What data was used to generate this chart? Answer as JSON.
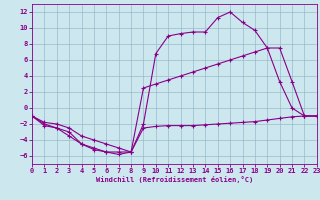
{
  "xlabel": "Windchill (Refroidissement éolien,°C)",
  "bg_color": "#cce8ee",
  "line_color": "#880088",
  "grid_color": "#99bbcc",
  "xlim": [
    0,
    23
  ],
  "ylim": [
    -7,
    13
  ],
  "yticks": [
    -6,
    -4,
    -2,
    0,
    2,
    4,
    6,
    8,
    10,
    12
  ],
  "xticks": [
    0,
    1,
    2,
    3,
    4,
    5,
    6,
    7,
    8,
    9,
    10,
    11,
    12,
    13,
    14,
    15,
    16,
    17,
    18,
    19,
    20,
    21,
    22,
    23
  ],
  "line1_x": [
    0,
    1,
    2,
    3,
    4,
    5,
    6,
    7,
    8,
    9,
    10,
    11,
    12,
    13,
    14,
    15,
    16,
    17,
    18,
    19,
    20,
    21,
    22,
    23
  ],
  "line1_y": [
    -1,
    -2.2,
    -2.5,
    -3.5,
    -4.5,
    -5.2,
    -5.5,
    -5.5,
    -5.5,
    -2.0,
    6.8,
    9.0,
    9.3,
    9.5,
    9.5,
    11.3,
    12.0,
    10.7,
    9.7,
    7.5,
    3.3,
    0.0,
    -1.0,
    -1.0
  ],
  "line2_x": [
    0,
    1,
    2,
    3,
    4,
    5,
    6,
    7,
    8,
    9,
    10,
    11,
    12,
    13,
    14,
    15,
    16,
    17,
    18,
    19,
    20,
    21,
    22,
    23
  ],
  "line2_y": [
    -1.0,
    -1.8,
    -2.0,
    -2.5,
    -3.5,
    -4.0,
    -4.5,
    -5.0,
    -5.5,
    2.5,
    3.0,
    3.5,
    4.0,
    4.5,
    5.0,
    5.5,
    6.0,
    6.5,
    7.0,
    7.5,
    7.5,
    3.3,
    -1.0,
    -1.0
  ],
  "line3_x": [
    0,
    1,
    2,
    3,
    4,
    5,
    6,
    7,
    8,
    9,
    10,
    11,
    12,
    13,
    14,
    15,
    16,
    17,
    18,
    19,
    20,
    21,
    22,
    23
  ],
  "line3_y": [
    -1.0,
    -2.0,
    -2.5,
    -3.0,
    -4.5,
    -5.0,
    -5.5,
    -5.8,
    -5.5,
    -2.5,
    -2.3,
    -2.2,
    -2.2,
    -2.2,
    -2.1,
    -2.0,
    -1.9,
    -1.8,
    -1.7,
    -1.5,
    -1.3,
    -1.1,
    -1.0,
    -1.0
  ]
}
